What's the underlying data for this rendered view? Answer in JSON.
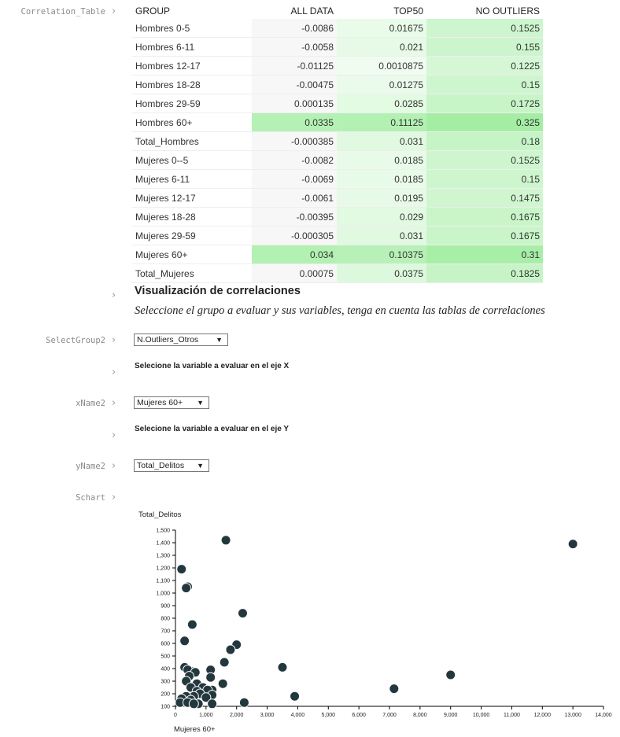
{
  "cells": {
    "corr_label": "Correlation_Table",
    "sel_group_label": "SelectGroup2",
    "xname_label": "xName2",
    "yname_label": "yName2",
    "schart_label": "Schart",
    "chevron": "›"
  },
  "table": {
    "headers": [
      "GROUP",
      "ALL DATA",
      "TOP50",
      "NO OUTLIERS"
    ],
    "rows": [
      [
        "Hombres 0-5",
        "-0.0086",
        "0.01675",
        "0.1525"
      ],
      [
        "Hombres 6-11",
        "-0.0058",
        "0.021",
        "0.155"
      ],
      [
        "Hombres 12-17",
        "-0.01125",
        "0.0010875",
        "0.1225"
      ],
      [
        "Hombres 18-28",
        "-0.00475",
        "0.01275",
        "0.15"
      ],
      [
        "Hombres 29-59",
        "0.000135",
        "0.0285",
        "0.1725"
      ],
      [
        "Hombres 60+",
        "0.0335",
        "0.11125",
        "0.325"
      ],
      [
        "Total_Hombres",
        "-0.000385",
        "0.031",
        "0.18"
      ],
      [
        "Mujeres 0--5",
        "-0.0082",
        "0.0185",
        "0.1525"
      ],
      [
        "Mujeres 6-11",
        "-0.0069",
        "0.0185",
        "0.15"
      ],
      [
        "Mujeres 12-17",
        "-0.0061",
        "0.0195",
        "0.1475"
      ],
      [
        "Mujeres 18-28",
        "-0.00395",
        "0.029",
        "0.1675"
      ],
      [
        "Mujeres 29-59",
        "-0.000305",
        "0.031",
        "0.1675"
      ],
      [
        "Mujeres 60+",
        "0.034",
        "0.10375",
        "0.31"
      ],
      [
        "Total_Mujeres",
        "0.00075",
        "0.0375",
        "0.1825"
      ]
    ]
  },
  "viz": {
    "title": "Visualización de correlaciones",
    "subtitle": "Seleccione el grupo a evaluar y sus variables, tenga en cuenta las tablas de correlaciones",
    "group_select": "N.Outliers_Otros",
    "x_prompt": "Selecione la variable a evaluar en el eje X",
    "x_select": "Mujeres 60+",
    "y_prompt": "Selecione la variable a evaluar en el eje Y",
    "y_select": "Total_Delitos",
    "select_arrow": "▼"
  },
  "colors": {
    "dot": "#23383e",
    "cell_tint": "#c8f5c8"
  },
  "chart_data": {
    "type": "scatter",
    "xlabel": "Mujeres 60+",
    "ylabel": "Total_Delitos",
    "xlim": [
      0,
      14000
    ],
    "ylim": [
      100,
      1500
    ],
    "x_ticks": [
      "0",
      "1,000",
      "2,000",
      "3,000",
      "4,000",
      "5,000",
      "6,000",
      "7,000",
      "8,000",
      "9,000",
      "10,000",
      "11,000",
      "12,000",
      "13,000",
      "14,000"
    ],
    "y_ticks": [
      "100",
      "200",
      "300",
      "400",
      "500",
      "600",
      "700",
      "800",
      "900",
      "1,000",
      "1,100",
      "1,200",
      "1,300",
      "1,400",
      "1,500"
    ],
    "points": [
      [
        1650,
        1420
      ],
      [
        13000,
        1390
      ],
      [
        200,
        1190
      ],
      [
        400,
        1050
      ],
      [
        350,
        1040
      ],
      [
        2200,
        840
      ],
      [
        550,
        750
      ],
      [
        300,
        620
      ],
      [
        2000,
        590
      ],
      [
        1800,
        550
      ],
      [
        1600,
        450
      ],
      [
        3500,
        410
      ],
      [
        300,
        410
      ],
      [
        500,
        380
      ],
      [
        400,
        390
      ],
      [
        650,
        370
      ],
      [
        1150,
        390
      ],
      [
        1150,
        330
      ],
      [
        450,
        340
      ],
      [
        9000,
        350
      ],
      [
        7150,
        240
      ],
      [
        350,
        300
      ],
      [
        700,
        280
      ],
      [
        1550,
        280
      ],
      [
        500,
        250
      ],
      [
        900,
        250
      ],
      [
        1200,
        230
      ],
      [
        1050,
        230
      ],
      [
        700,
        220
      ],
      [
        800,
        200
      ],
      [
        1200,
        190
      ],
      [
        3900,
        180
      ],
      [
        600,
        180
      ],
      [
        1000,
        170
      ],
      [
        350,
        180
      ],
      [
        200,
        160
      ],
      [
        500,
        150
      ],
      [
        150,
        130
      ],
      [
        400,
        130
      ],
      [
        750,
        120
      ],
      [
        600,
        120
      ],
      [
        1200,
        120
      ],
      [
        2250,
        130
      ]
    ]
  }
}
